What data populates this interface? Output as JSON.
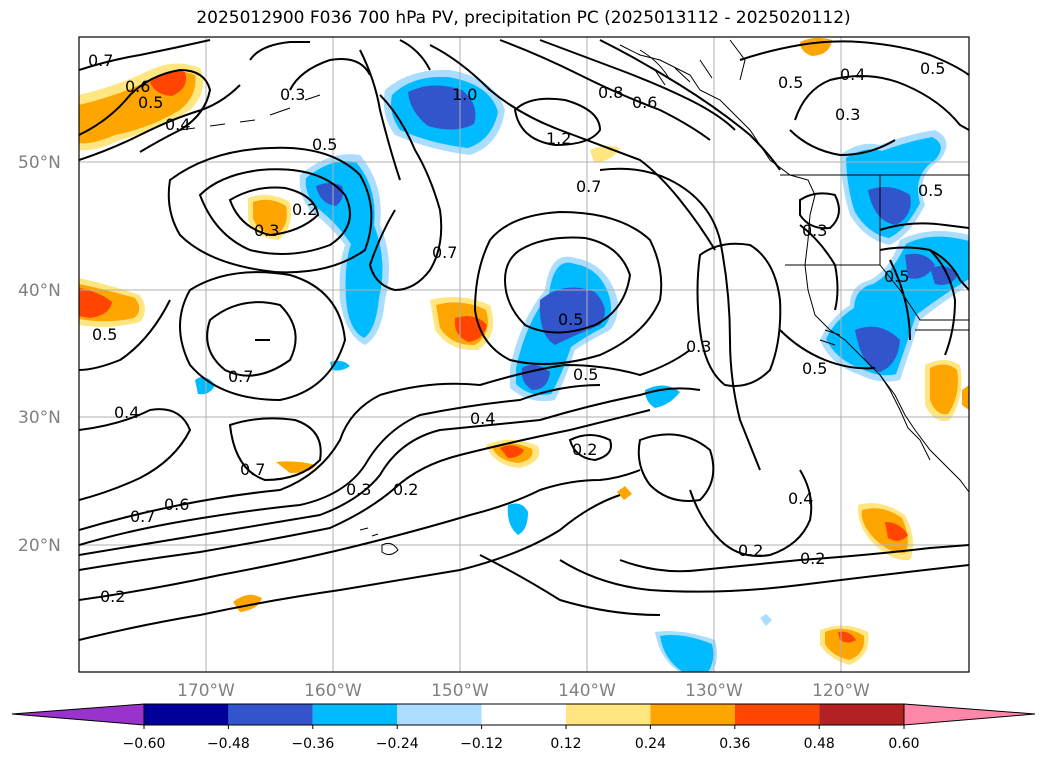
{
  "title": "2025012900 F036 700 hPa PV, precipitation PC (2025013112 - 2025020112)",
  "map": {
    "lat_labels": [
      "50°N",
      "40°N",
      "30°N",
      "20°N"
    ],
    "lon_labels": [
      "170°W",
      "160°W",
      "150°W",
      "140°W",
      "130°W",
      "120°W"
    ],
    "grid_lats": [
      50,
      40,
      30,
      20
    ],
    "grid_lons": [
      -170,
      -160,
      -150,
      -140,
      -130,
      -120
    ],
    "pv_contour_labels": [
      "0.7",
      "0.6",
      "0.5",
      "0.4",
      "0.3",
      "1.0",
      "1.2",
      "0.8",
      "0.6",
      "0.5",
      "0.4",
      "0.5",
      "0.3",
      "0.5",
      "0.2",
      "0.3",
      "0.7",
      "0.7",
      "0.5",
      "0.5",
      "0.3",
      "0.5",
      "0.5",
      "0.3",
      "0.4",
      "0.2",
      "0.3",
      "0.2",
      "0.2",
      "0.7",
      "0.4",
      "0.7",
      "0.6",
      "0.7",
      "0.4",
      "0.2",
      "0.2",
      "0.5",
      "0.5"
    ]
  },
  "colorbar": {
    "tick_labels": [
      "−0.60",
      "−0.48",
      "−0.36",
      "−0.24",
      "−0.12",
      "0.12",
      "0.24",
      "0.36",
      "0.48",
      "0.60"
    ],
    "colors": [
      "#9933cc",
      "#000099",
      "#3355cc",
      "#00bbff",
      "#aaddff",
      "#ffffff",
      "#ffe680",
      "#ffa500",
      "#ff4500",
      "#b22222",
      "#ff88aa"
    ]
  }
}
